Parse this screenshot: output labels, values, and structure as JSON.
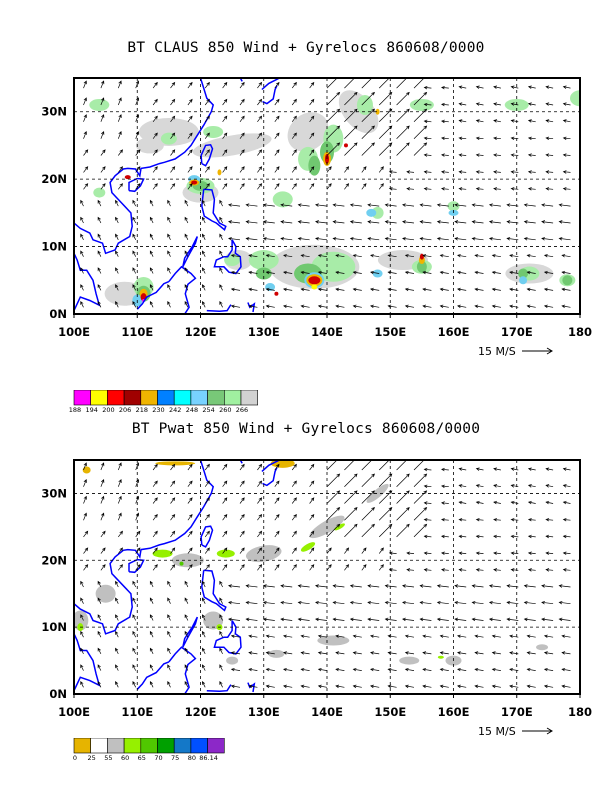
{
  "panels": [
    {
      "id": "top",
      "title": "BT CLAUS 850 Wind + Gyrelocs 860608/0000",
      "x_ticks": [
        "100E",
        "110E",
        "120E",
        "130E",
        "140E",
        "150E",
        "160E",
        "170E",
        "180"
      ],
      "y_ticks": [
        "0N",
        "10N",
        "20N",
        "30N"
      ],
      "reference_vector": "15 M/S",
      "colorbar": {
        "labels": [
          "188",
          "194",
          "200",
          "206",
          "218",
          "230",
          "242",
          "248",
          "254",
          "260",
          "266"
        ],
        "colors": [
          "#ff00ff",
          "#ffff00",
          "#ff0000",
          "#a00000",
          "#f0b400",
          "#0080ff",
          "#00ffff",
          "#78d2ff",
          "#78c878",
          "#a0f0a0",
          "#d2d2d2"
        ]
      }
    },
    {
      "id": "bottom",
      "title": "BT Pwat 850 Wind + Gyrelocs 860608/0000",
      "x_ticks": [
        "100E",
        "110E",
        "120E",
        "130E",
        "140E",
        "150E",
        "160E",
        "170E",
        "180"
      ],
      "y_ticks": [
        "0N",
        "10N",
        "20N",
        "30N"
      ],
      "reference_vector": "15 M/S",
      "colorbar": {
        "labels": [
          "0",
          "25",
          "55",
          "60",
          "65",
          "70",
          "75",
          "80",
          "86.14"
        ],
        "colors": [
          "#e6b400",
          "#ffffff",
          "#c0c0c0",
          "#96f000",
          "#50c800",
          "#00a000",
          "#1478c8",
          "#0050ff",
          "#8c28c8"
        ]
      }
    }
  ],
  "map_style": {
    "coast_color": "#0000ff",
    "grid_color": "#000000"
  }
}
